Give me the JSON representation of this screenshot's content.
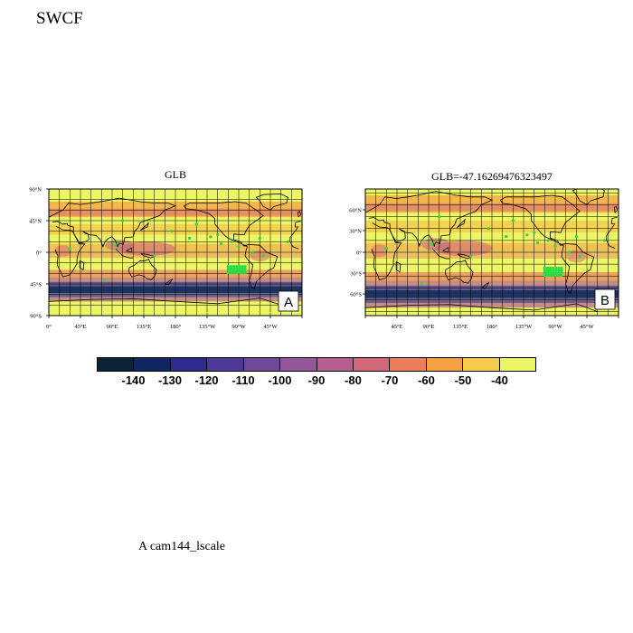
{
  "title": "SWCF",
  "footnote": "A  cam144_lscale",
  "panels": [
    {
      "id": "A",
      "title": "GLB",
      "label": "A",
      "lat_ticks": [
        "90°N",
        "45°N",
        "0°",
        "45°S",
        "90°S"
      ],
      "lon_ticks": [
        "0°",
        "45°E",
        "90°E",
        "135°E",
        "180°",
        "135°W",
        "90°W",
        "45°W"
      ]
    },
    {
      "id": "B",
      "title": "GLB=-47.16269476323497",
      "label": "B",
      "lat_ticks": [
        "60°N",
        "30°N",
        "0°",
        "30°S",
        "60°S"
      ],
      "lon_ticks": [
        "45°E",
        "90°E",
        "135°E",
        "180°",
        "135°W",
        "90°W",
        "45°W"
      ]
    }
  ],
  "colorbar": {
    "labels": [
      "-140",
      "-130",
      "-120",
      "-110",
      "-100",
      "-90",
      "-80",
      "-70",
      "-60",
      "-50",
      "-40"
    ],
    "colors": [
      "#0b2433",
      "#11275f",
      "#2e2b8f",
      "#4d3a96",
      "#6e4a98",
      "#93579a",
      "#b45f8f",
      "#d2697a",
      "#ea7e5c",
      "#f5a043",
      "#f4cb4c",
      "#ecf566"
    ]
  },
  "colors": {
    "background_field": "#ecf566",
    "significance_marks": "#22dd44"
  }
}
